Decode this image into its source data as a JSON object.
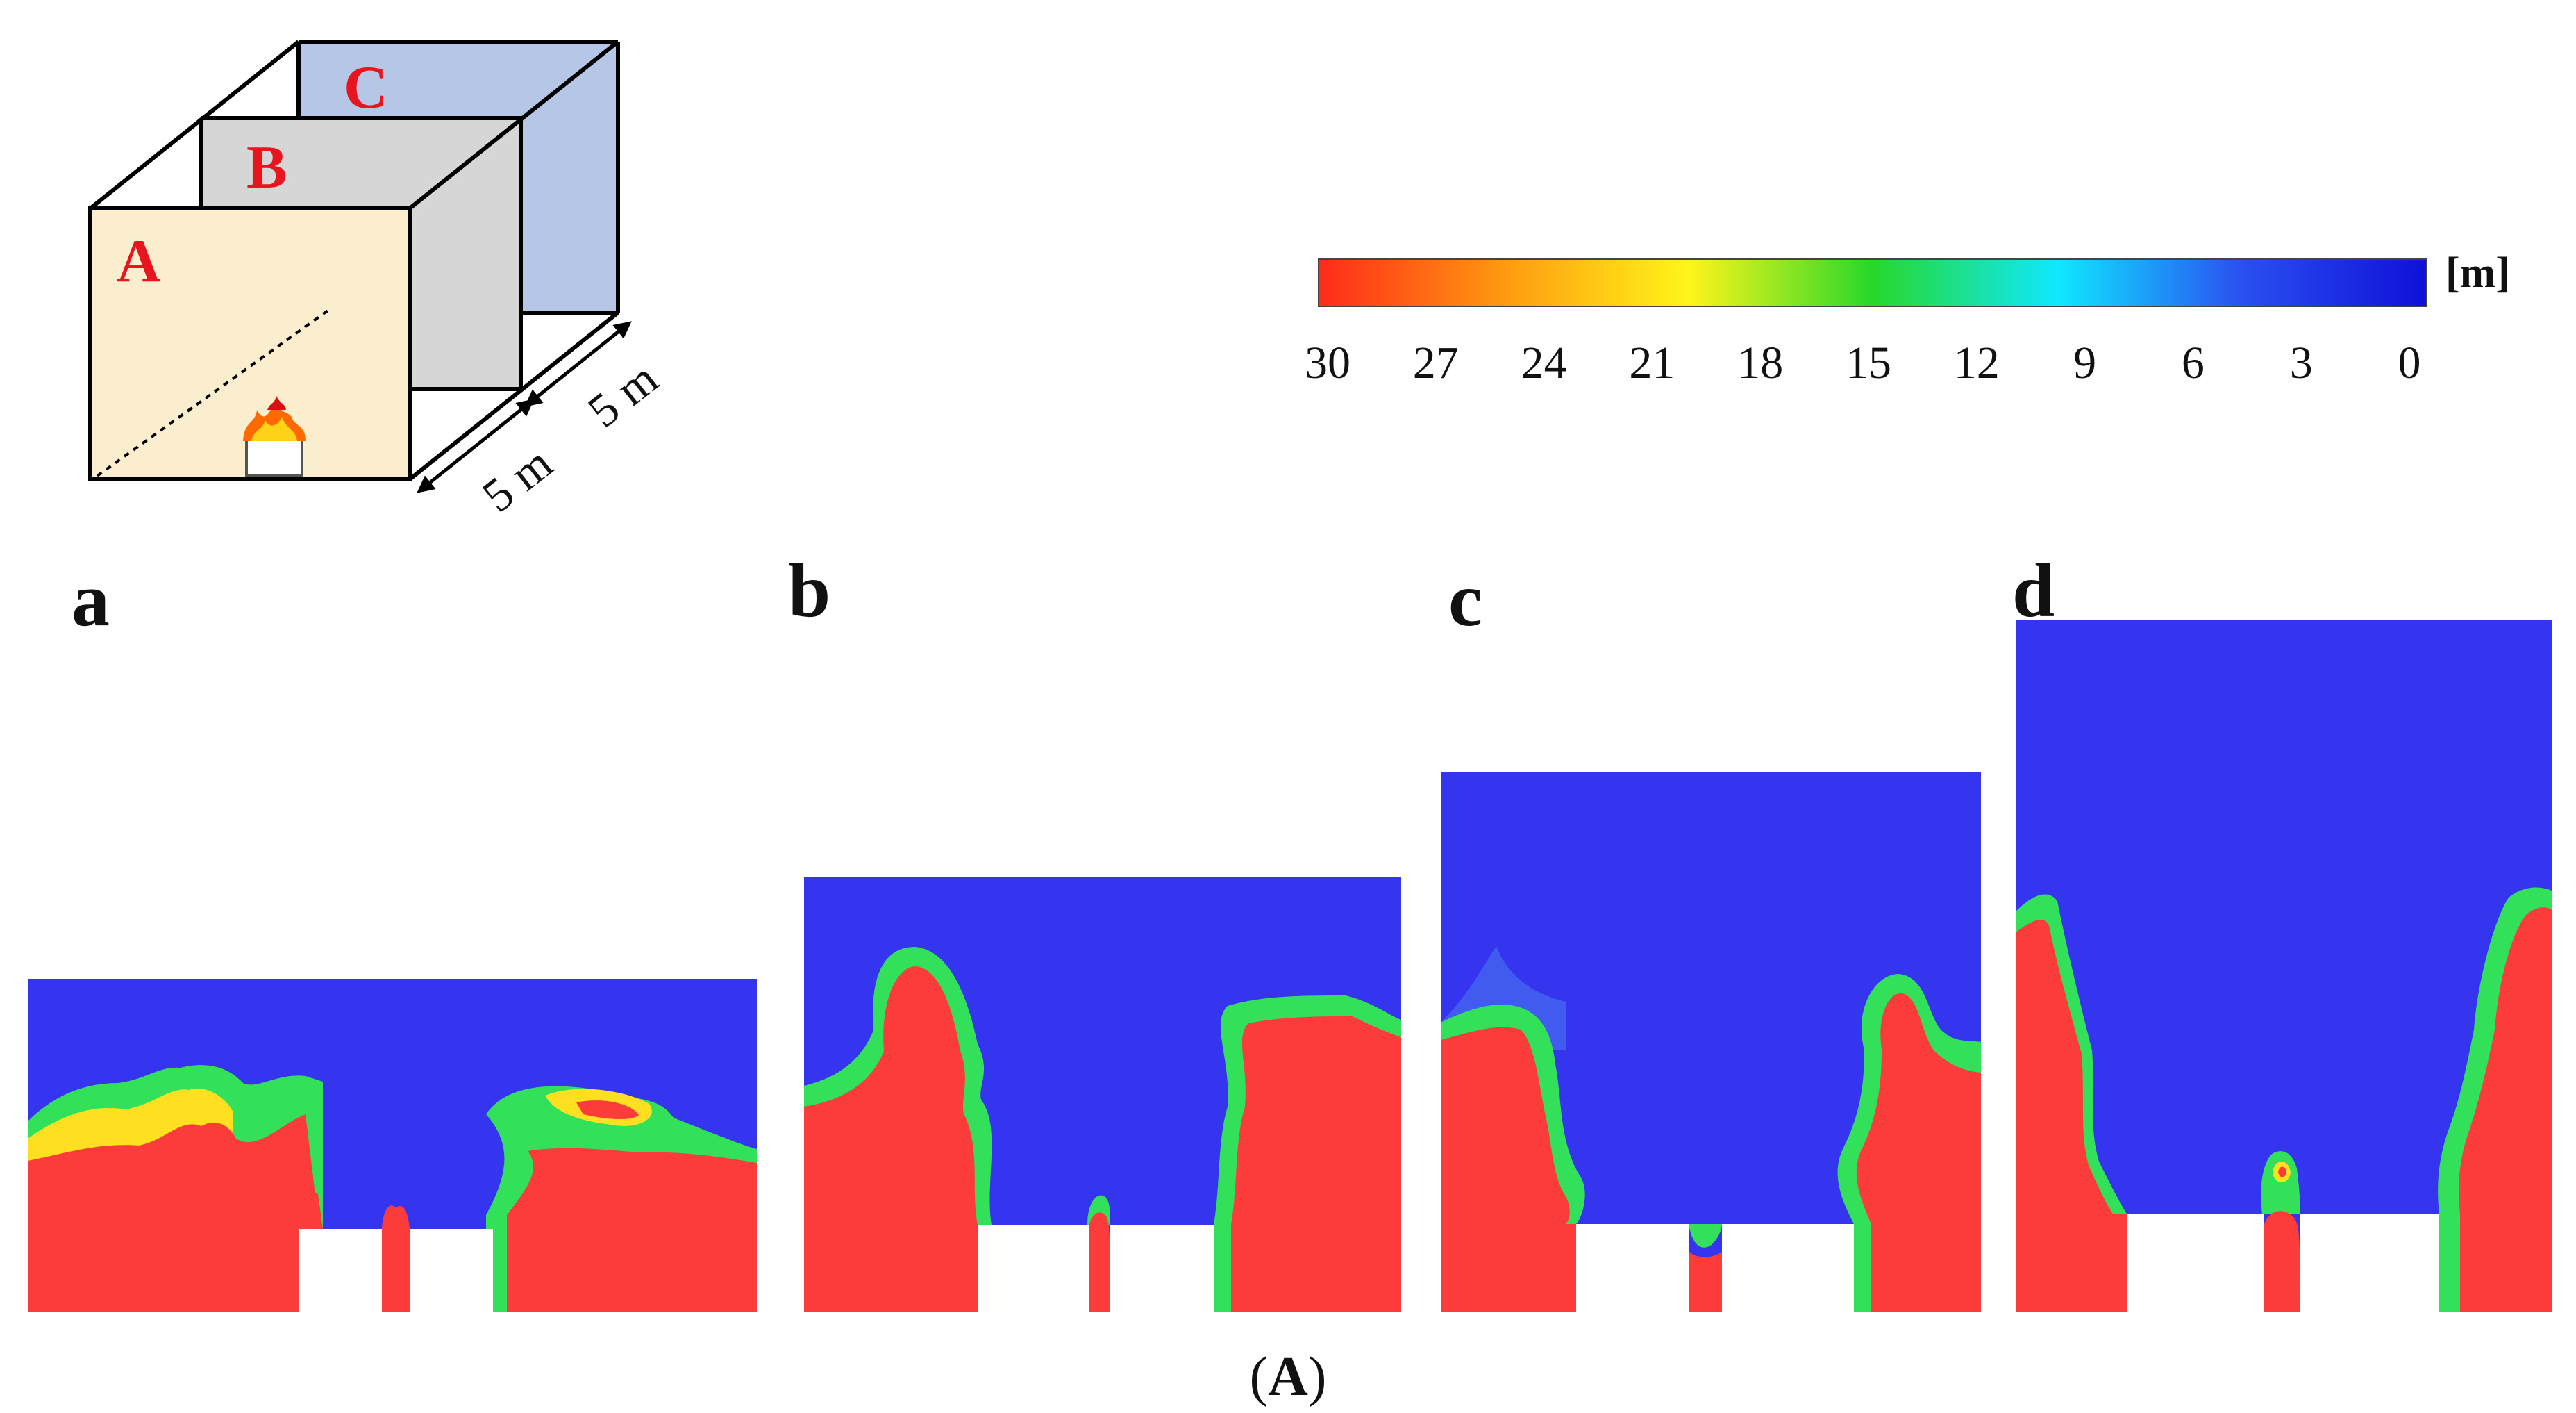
{
  "schematic": {
    "room_labels": [
      "A",
      "B",
      "C"
    ],
    "dim_label_1": "5 m",
    "dim_label_2": "5 m"
  },
  "colorbar": {
    "unit": "[m]",
    "ticks": [
      "30",
      "27",
      "24",
      "21",
      "18",
      "15",
      "12",
      "9",
      "6",
      "3",
      "0"
    ],
    "colors": [
      "#ff2a1a",
      "#ff9a10",
      "#fff51a",
      "#27d82a",
      "#10e8ff",
      "#2a50f0",
      "#1010d8"
    ]
  },
  "panels": [
    {
      "label": "a"
    },
    {
      "label": "b"
    },
    {
      "label": "c"
    },
    {
      "label": "d"
    }
  ],
  "contour_colors": {
    "low": "#3535f0",
    "high": "#fc3b3b",
    "mid1": "#33e05a",
    "mid2": "#ffe020"
  },
  "caption": {
    "open": "(",
    "letter": "A",
    "close": ")"
  }
}
